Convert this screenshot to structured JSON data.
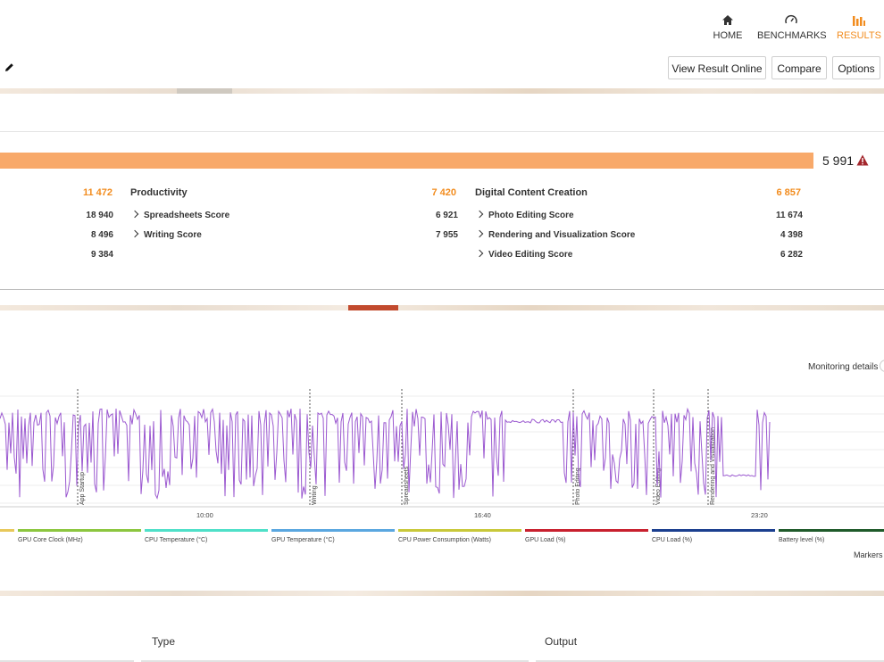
{
  "nav": {
    "items": [
      {
        "label": "HOME",
        "icon": "home-icon",
        "active": false
      },
      {
        "label": "BENCHMARKS",
        "icon": "gauge-icon",
        "active": false
      },
      {
        "label": "RESULTS",
        "icon": "bar-chart-icon",
        "active": true
      }
    ]
  },
  "toolbar": {
    "view_online": "View Result Online",
    "compare": "Compare",
    "options": "Options",
    "edit_icon": "pencil-icon"
  },
  "overall": {
    "score": "5 991",
    "warning_icon": "warning-triangle-icon",
    "bar_fraction": 0.92
  },
  "categories": {
    "first": {
      "score": "11 472",
      "rows": [
        "18 940",
        "8 496",
        "9 384"
      ]
    },
    "productivity": {
      "title": "Productivity",
      "score": "7 420",
      "rows": [
        {
          "label": "Spreadsheets Score",
          "value": "6 921"
        },
        {
          "label": "Writing Score",
          "value": "7 955"
        }
      ]
    },
    "dcc": {
      "title": "Digital Content Creation",
      "score": "6 857",
      "rows": [
        {
          "label": "Photo Editing Score",
          "value": "11 674"
        },
        {
          "label": "Rendering and Visualization Score",
          "value": "4 398"
        },
        {
          "label": "Video Editing Score",
          "value": "6 282"
        }
      ]
    }
  },
  "monitoring": {
    "details_label": "Monitoring details",
    "markers_label": "Markers",
    "line_color": "#9b59d0",
    "time_ticks": [
      "10:00",
      "16:40",
      "23:20"
    ],
    "markers": [
      "App Startup",
      "Writing",
      "Spreadsheets",
      "Photo Editing",
      "Video Editing",
      "Rendering and Visualization"
    ],
    "legend": [
      {
        "label": "GPU Core Clock (MHz)",
        "color": "#8cc63f"
      },
      {
        "label": "CPU Temperature (°C)",
        "color": "#4fe0c8"
      },
      {
        "label": "GPU Temperature (°C)",
        "color": "#5aa7e0"
      },
      {
        "label": "CPU Power Consumption (Watts)",
        "color": "#c8c83a"
      },
      {
        "label": "GPU Load (%)",
        "color": "#c8202e"
      },
      {
        "label": "CPU Load (%)",
        "color": "#1b3f8f"
      },
      {
        "label": "Battery level (%)",
        "color": "#1f5a2a"
      }
    ]
  },
  "details_table": {
    "col_type": "Type",
    "col_output": "Output"
  }
}
